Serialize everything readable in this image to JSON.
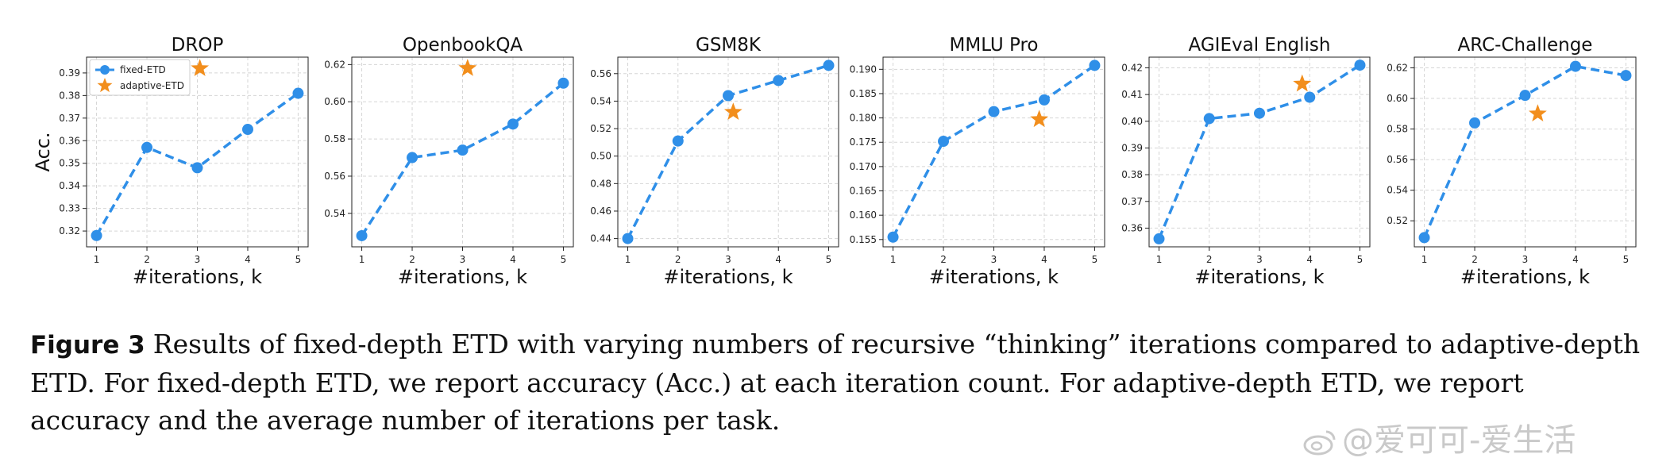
{
  "chart_data": [
    {
      "type": "line",
      "title": "DROP",
      "xlabel": "#iterations, k",
      "ylabel": "Acc.",
      "x": [
        1,
        2,
        3,
        4,
        5
      ],
      "xticks": [
        "1",
        "2",
        "3",
        "4",
        "5"
      ],
      "ylim": [
        0.313,
        0.397
      ],
      "yticks": [
        "0.32",
        "0.33",
        "0.34",
        "0.35",
        "0.36",
        "0.37",
        "0.38",
        "0.39"
      ],
      "grid": true,
      "legend": "top-left",
      "series": [
        {
          "name": "fixed-ETD",
          "values": [
            0.318,
            0.357,
            0.348,
            0.365,
            0.381
          ]
        },
        {
          "name": "adaptive-ETD",
          "points": [
            {
              "x": 3.05,
              "y": 0.392
            }
          ]
        }
      ]
    },
    {
      "type": "line",
      "title": "OpenbookQA",
      "xlabel": "#iterations, k",
      "x": [
        1,
        2,
        3,
        4,
        5
      ],
      "xticks": [
        "1",
        "2",
        "3",
        "4",
        "5"
      ],
      "ylim": [
        0.522,
        0.624
      ],
      "yticks": [
        "0.54",
        "0.56",
        "0.58",
        "0.60",
        "0.62"
      ],
      "grid": true,
      "series": [
        {
          "name": "fixed-ETD",
          "values": [
            0.528,
            0.57,
            0.574,
            0.588,
            0.61
          ]
        },
        {
          "name": "adaptive-ETD",
          "points": [
            {
              "x": 3.1,
              "y": 0.618
            }
          ]
        }
      ]
    },
    {
      "type": "line",
      "title": "GSM8K",
      "xlabel": "#iterations, k",
      "x": [
        1,
        2,
        3,
        4,
        5
      ],
      "xticks": [
        "1",
        "2",
        "3",
        "4",
        "5"
      ],
      "ylim": [
        0.434,
        0.572
      ],
      "yticks": [
        "0.44",
        "0.46",
        "0.48",
        "0.50",
        "0.52",
        "0.54",
        "0.56"
      ],
      "grid": true,
      "series": [
        {
          "name": "fixed-ETD",
          "values": [
            0.44,
            0.511,
            0.544,
            0.555,
            0.566
          ]
        },
        {
          "name": "adaptive-ETD",
          "points": [
            {
              "x": 3.1,
              "y": 0.532
            }
          ]
        }
      ]
    },
    {
      "type": "line",
      "title": "MMLU Pro",
      "xlabel": "#iterations, k",
      "x": [
        1,
        2,
        3,
        4,
        5
      ],
      "xticks": [
        "1",
        "2",
        "3",
        "4",
        "5"
      ],
      "ylim": [
        0.1535,
        0.1925
      ],
      "yticks": [
        "0.155",
        "0.160",
        "0.165",
        "0.170",
        "0.175",
        "0.180",
        "0.185",
        "0.190"
      ],
      "grid": true,
      "series": [
        {
          "name": "fixed-ETD",
          "values": [
            0.1555,
            0.1752,
            0.1813,
            0.1837,
            0.1908
          ]
        },
        {
          "name": "adaptive-ETD",
          "points": [
            {
              "x": 3.9,
              "y": 0.1797
            }
          ]
        }
      ]
    },
    {
      "type": "line",
      "title": "AGIEval English",
      "xlabel": "#iterations, k",
      "x": [
        1,
        2,
        3,
        4,
        5
      ],
      "xticks": [
        "1",
        "2",
        "3",
        "4",
        "5"
      ],
      "ylim": [
        0.353,
        0.424
      ],
      "yticks": [
        "0.36",
        "0.37",
        "0.38",
        "0.39",
        "0.40",
        "0.41",
        "0.42"
      ],
      "grid": true,
      "series": [
        {
          "name": "fixed-ETD",
          "values": [
            0.356,
            0.401,
            0.403,
            0.409,
            0.421
          ]
        },
        {
          "name": "adaptive-ETD",
          "points": [
            {
              "x": 3.85,
              "y": 0.414
            }
          ]
        }
      ]
    },
    {
      "type": "line",
      "title": "ARC-Challenge",
      "xlabel": "#iterations, k",
      "x": [
        1,
        2,
        3,
        4,
        5
      ],
      "xticks": [
        "1",
        "2",
        "3",
        "4",
        "5"
      ],
      "ylim": [
        0.503,
        0.627
      ],
      "yticks": [
        "0.52",
        "0.54",
        "0.56",
        "0.58",
        "0.60",
        "0.62"
      ],
      "grid": true,
      "series": [
        {
          "name": "fixed-ETD",
          "values": [
            0.509,
            0.584,
            0.602,
            0.621,
            0.615
          ]
        },
        {
          "name": "adaptive-ETD",
          "points": [
            {
              "x": 3.25,
              "y": 0.59
            }
          ]
        }
      ]
    }
  ],
  "legend": {
    "fixed": "fixed-ETD",
    "adaptive": "adaptive-ETD"
  },
  "colors": {
    "fixed": "#2f8fe8",
    "adaptive": "#f28e1c",
    "grid": "#d5d5d5",
    "axis": "#222222"
  },
  "caption": {
    "label": "Figure 3",
    "text": "Results of fixed-depth ETD with varying numbers of recursive “thinking” iterations compared to adaptive-depth ETD. For fixed-depth ETD, we report accuracy (Acc.) at each iteration count. For adaptive-depth ETD, we report accuracy and the average number of iterations per task."
  },
  "watermark": {
    "text": "@爱可可-爱生活"
  }
}
